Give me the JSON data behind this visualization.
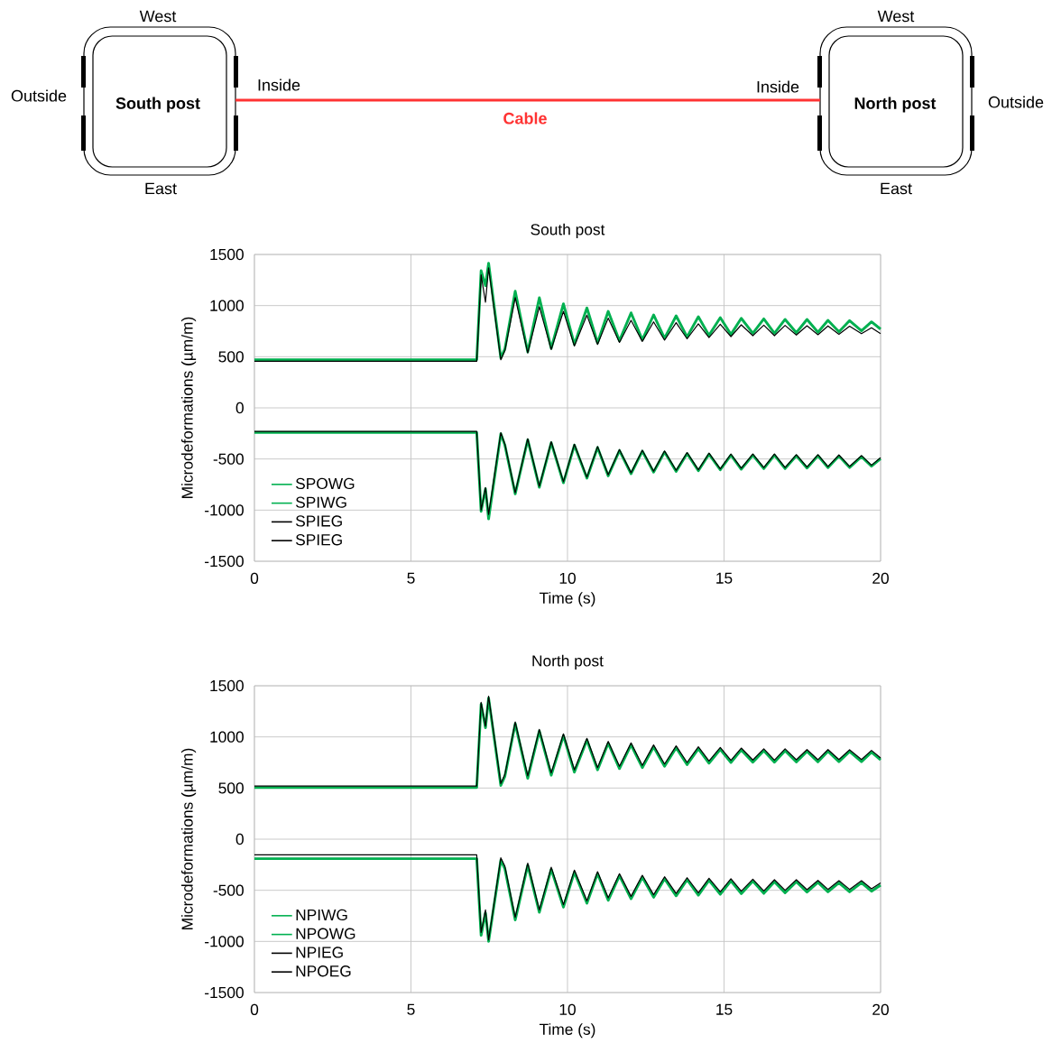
{
  "chart_data": [
    {
      "type": "other",
      "annotations": [
        "West",
        "Outside",
        "South post",
        "Inside",
        "East",
        "Cable",
        "West",
        "Inside",
        "North post",
        "Outside",
        "East"
      ]
    },
    {
      "type": "line",
      "title": "South post",
      "xlabel": "Time (s)",
      "ylabel": "Microdeformations (µm/m)",
      "xlim": [
        0,
        20
      ],
      "xticks": [
        0,
        5,
        10,
        15,
        20
      ],
      "ylim": [
        -1500,
        1500
      ],
      "yticks": [
        -1500,
        -1000,
        -500,
        0,
        500,
        1000,
        1500
      ],
      "grid": true,
      "legend": "bottom left",
      "x": [
        0,
        7.1,
        7.24,
        7.38,
        7.48,
        7.87,
        8.0,
        8.33,
        8.73,
        9.1,
        9.48,
        9.87,
        10.22,
        10.62,
        10.96,
        11.3,
        11.66,
        12.03,
        12.39,
        12.75,
        13.1,
        13.47,
        13.82,
        14.18,
        14.52,
        14.88,
        15.22,
        15.55,
        15.92,
        16.27,
        16.61,
        16.95,
        17.31,
        17.65,
        18.0,
        18.32,
        18.67,
        19.01,
        19.39,
        19.71,
        20
      ],
      "series": [
        {
          "name": "SPOWG",
          "color": "#00b050",
          "values": [
            470,
            470,
            1341,
            1194,
            1415,
            488,
            576,
            1141,
            547,
            1077,
            582,
            1018,
            621,
            977,
            635,
            944,
            656,
            929,
            665,
            909,
            680,
            900,
            694,
            891,
            709,
            883,
            718,
            876,
            730,
            871,
            730,
            865,
            735,
            865,
            739,
            856,
            744,
            853,
            753,
            841,
            770
          ]
        },
        {
          "name": "SPIWG",
          "color": "#00b050",
          "values": [
            -241,
            -241,
            -1012,
            -792,
            -1086,
            -253,
            -365,
            -841,
            -312,
            -777,
            -341,
            -733,
            -365,
            -688,
            -388,
            -665,
            -418,
            -644,
            -424,
            -629,
            -432,
            -621,
            -447,
            -615,
            -453,
            -606,
            -462,
            -600,
            -462,
            -594,
            -462,
            -594,
            -468,
            -589,
            -468,
            -585,
            -471,
            -583,
            -477,
            -571,
            -497
          ]
        },
        {
          "name": "SPIEG",
          "color": "#000000",
          "values": [
            455,
            455,
            1300,
            1033,
            1370,
            470,
            560,
            1077,
            537,
            989,
            570,
            944,
            605,
            906,
            620,
            877,
            640,
            856,
            650,
            841,
            662,
            833,
            675,
            821,
            688,
            818,
            697,
            812,
            706,
            809,
            706,
            806,
            712,
            803,
            715,
            801,
            720,
            798,
            725,
            783,
            725
          ]
        },
        {
          "name": "SPIEG",
          "color": "#000000",
          "values": [
            -231,
            -231,
            -1000,
            -780,
            -1042,
            -243,
            -355,
            -831,
            -302,
            -767,
            -331,
            -723,
            -355,
            -678,
            -378,
            -655,
            -408,
            -634,
            -414,
            -619,
            -422,
            -611,
            -437,
            -605,
            -443,
            -596,
            -452,
            -590,
            -452,
            -584,
            -452,
            -584,
            -458,
            -579,
            -458,
            -575,
            -461,
            -573,
            -467,
            -561,
            -487
          ]
        }
      ]
    },
    {
      "type": "line",
      "title": "North post",
      "xlabel": "Time (s)",
      "ylabel": "Microdeformations (µm/m)",
      "xlim": [
        0,
        20
      ],
      "xticks": [
        0,
        5,
        10,
        15,
        20
      ],
      "ylim": [
        -1500,
        1500
      ],
      "yticks": [
        -1500,
        -1000,
        -500,
        0,
        500,
        1000,
        1500
      ],
      "grid": true,
      "legend": "bottom left",
      "x": [
        0,
        7.1,
        7.24,
        7.38,
        7.48,
        7.87,
        8.0,
        8.33,
        8.73,
        9.1,
        9.48,
        9.87,
        10.22,
        10.62,
        10.96,
        11.3,
        11.66,
        12.03,
        12.39,
        12.75,
        13.1,
        13.47,
        13.82,
        14.18,
        14.52,
        14.88,
        15.22,
        15.55,
        15.92,
        16.27,
        16.61,
        16.95,
        17.31,
        17.65,
        18.0,
        18.32,
        18.67,
        19.01,
        19.39,
        19.71,
        20
      ],
      "series": [
        {
          "name": "NPIWG",
          "color": "#00b050",
          "values": [
            505,
            505,
            1320,
            1090,
            1380,
            525,
            615,
            1130,
            595,
            1058,
            625,
            1012,
            655,
            968,
            678,
            938,
            690,
            922,
            700,
            902,
            713,
            893,
            728,
            884,
            743,
            878,
            750,
            872,
            753,
            865,
            753,
            865,
            756,
            858,
            756,
            858,
            758,
            856,
            758,
            850,
            775
          ]
        },
        {
          "name": "NPOWG",
          "color": "#00b050",
          "values": [
            -191,
            -191,
            -941,
            -720,
            -1000,
            -205,
            -290,
            -790,
            -255,
            -715,
            -294,
            -665,
            -323,
            -627,
            -338,
            -598,
            -358,
            -583,
            -373,
            -568,
            -388,
            -554,
            -397,
            -548,
            -402,
            -539,
            -408,
            -533,
            -411,
            -530,
            -417,
            -524,
            -417,
            -518,
            -423,
            -515,
            -426,
            -515,
            -426,
            -509,
            -450
          ]
        },
        {
          "name": "NPIEG",
          "color": "#000000",
          "values": [
            520,
            520,
            1339,
            1103,
            1397,
            544,
            633,
            1147,
            618,
            1074,
            647,
            1030,
            677,
            986,
            700,
            956,
            712,
            941,
            721,
            921,
            735,
            912,
            750,
            903,
            765,
            897,
            771,
            891,
            774,
            883,
            774,
            883,
            777,
            876,
            777,
            876,
            779,
            874,
            779,
            868,
            794
          ]
        },
        {
          "name": "NPOEG",
          "color": "#000000",
          "values": [
            -153,
            -153,
            -912,
            -691,
            -986,
            -182,
            -265,
            -765,
            -235,
            -691,
            -274,
            -641,
            -303,
            -603,
            -318,
            -574,
            -338,
            -559,
            -353,
            -544,
            -368,
            -530,
            -377,
            -524,
            -382,
            -515,
            -388,
            -509,
            -391,
            -506,
            -397,
            -500,
            -397,
            -494,
            -403,
            -491,
            -406,
            -491,
            -406,
            -485,
            -427
          ]
        }
      ]
    }
  ]
}
